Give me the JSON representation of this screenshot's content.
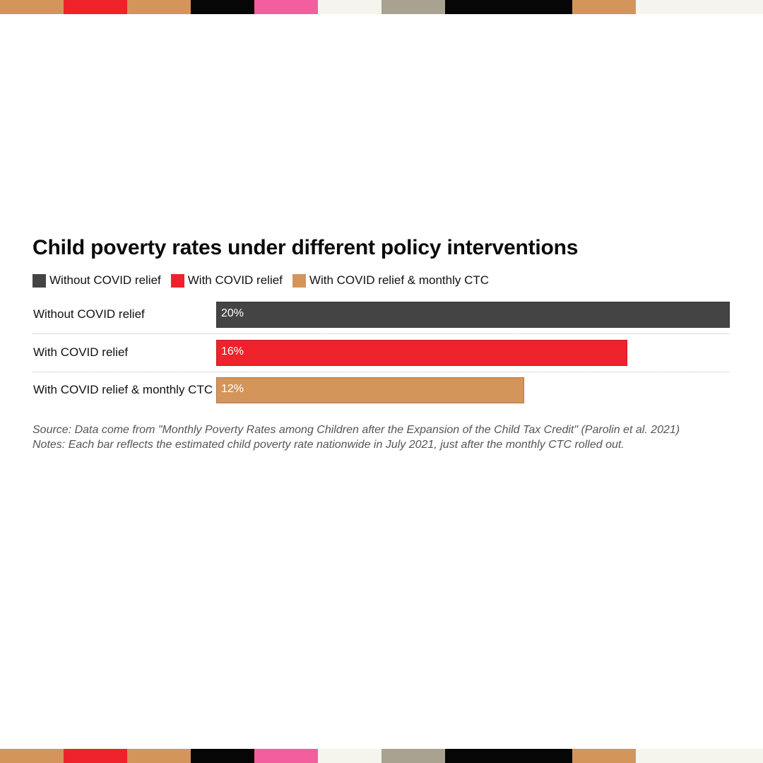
{
  "stripe_colors": [
    "#d4955b",
    "#ee222b",
    "#d4955b",
    "#060606",
    "#f35f9e",
    "#f5f5ee",
    "#a9a291",
    "#060606",
    "#060606",
    "#d4955b",
    "#f5f5ee",
    "#f5f5ee"
  ],
  "chart_data": {
    "type": "bar",
    "orientation": "horizontal",
    "title": "Child poverty rates under different policy interventions",
    "categories": [
      "Without COVID relief",
      "With COVID relief",
      "With COVID relief & monthly CTC"
    ],
    "values": [
      20,
      16,
      12
    ],
    "value_labels": [
      "20%",
      "16%",
      "12%"
    ],
    "unit": "%",
    "colors": [
      "#444444",
      "#ee222b",
      "#d4955b"
    ],
    "xlim": [
      0,
      20
    ],
    "xlabel": "",
    "ylabel": "",
    "legend": {
      "position": "top-left",
      "entries": [
        {
          "label": "Without COVID relief",
          "color": "#444444"
        },
        {
          "label": "With COVID relief",
          "color": "#ee222b"
        },
        {
          "label": "With COVID relief & monthly CTC",
          "color": "#d4955b"
        }
      ]
    },
    "source": "Source: Data come from \"Monthly Poverty Rates among Children after the Expansion of the Child Tax Credit\" (Parolin et al. 2021)",
    "notes": "Notes: Each bar reflects the estimated child poverty rate nationwide in July 2021, just after the monthly CTC rolled out."
  }
}
